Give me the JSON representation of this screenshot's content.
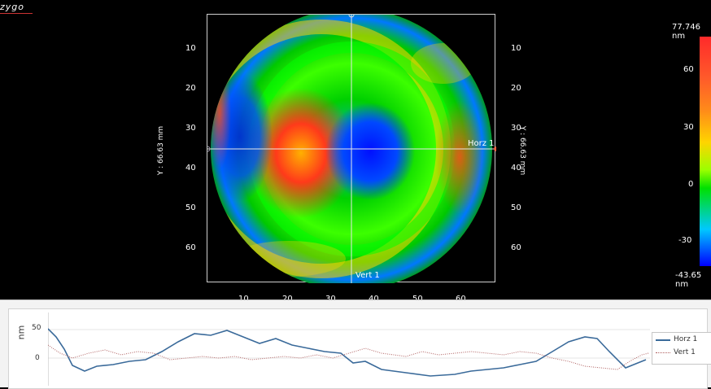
{
  "app": {
    "logo_text": "zygo"
  },
  "map": {
    "y_axis_label_left": "Y : 66.63 mm",
    "y_axis_label_right": "Y : 66.63 mm",
    "y_ticks": [
      "10",
      "20",
      "30",
      "40",
      "50",
      "60"
    ],
    "x_ticks": [
      "10",
      "20",
      "30",
      "40",
      "50",
      "60"
    ],
    "horz_marker": "Horz 1",
    "vert_marker": "Vert 1"
  },
  "colorbar": {
    "max_label": "77.746 nm",
    "min_label": "-43.65 nm",
    "ticks": [
      "60",
      "30",
      "0",
      "-30"
    ],
    "colors": {
      "high": "#ff2a2a",
      "mid": "#00e000",
      "low": "#0000ff"
    }
  },
  "profile": {
    "ylabel": "nm",
    "y_ticks": [
      "50",
      "0"
    ],
    "legend": [
      {
        "name": "Horz 1",
        "color": "#3a6a9a",
        "style": "solid"
      },
      {
        "name": "Vert 1",
        "color": "#b06060",
        "style": "dotted"
      }
    ]
  }
}
